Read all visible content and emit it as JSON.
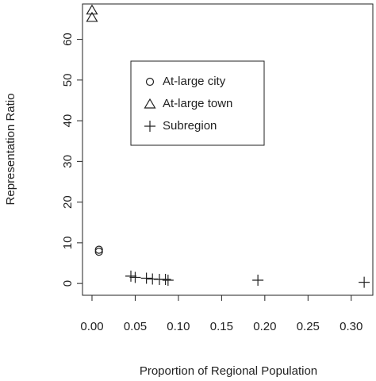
{
  "chart_data": {
    "type": "scatter",
    "xlabel": "Proportion of Regional Population",
    "ylabel": "Representation Ratio",
    "xlim": [
      -0.011,
      0.325
    ],
    "ylim": [
      -2.9,
      68.7
    ],
    "xticks": [
      {
        "value": 0,
        "label": "0.00"
      },
      {
        "value": 0.05,
        "label": "0.05"
      },
      {
        "value": 0.1,
        "label": "0.10"
      },
      {
        "value": 0.15,
        "label": "0.15"
      },
      {
        "value": 0.2,
        "label": "0.20"
      },
      {
        "value": 0.25,
        "label": "0.25"
      },
      {
        "value": 0.3,
        "label": "0.30"
      }
    ],
    "yticks": [
      0,
      10,
      20,
      30,
      40,
      50,
      60
    ],
    "series": [
      {
        "name": "At-large city",
        "marker": "circle",
        "color": "#222222",
        "x": [
          0.008,
          0.008
        ],
        "values": [
          8.3,
          7.8
        ]
      },
      {
        "name": "At-large town",
        "marker": "triangle",
        "color": "#222222",
        "x": [
          0.0,
          0.0
        ],
        "values": [
          67.2,
          65.4
        ]
      },
      {
        "name": "Subregion",
        "marker": "plus",
        "color": "#222222",
        "x": [
          0.045,
          0.05,
          0.063,
          0.07,
          0.078,
          0.085,
          0.088,
          0.192,
          0.315
        ],
        "values": [
          1.8,
          1.5,
          1.3,
          1.1,
          1.0,
          1.0,
          0.8,
          0.8,
          0.3
        ]
      }
    ]
  }
}
